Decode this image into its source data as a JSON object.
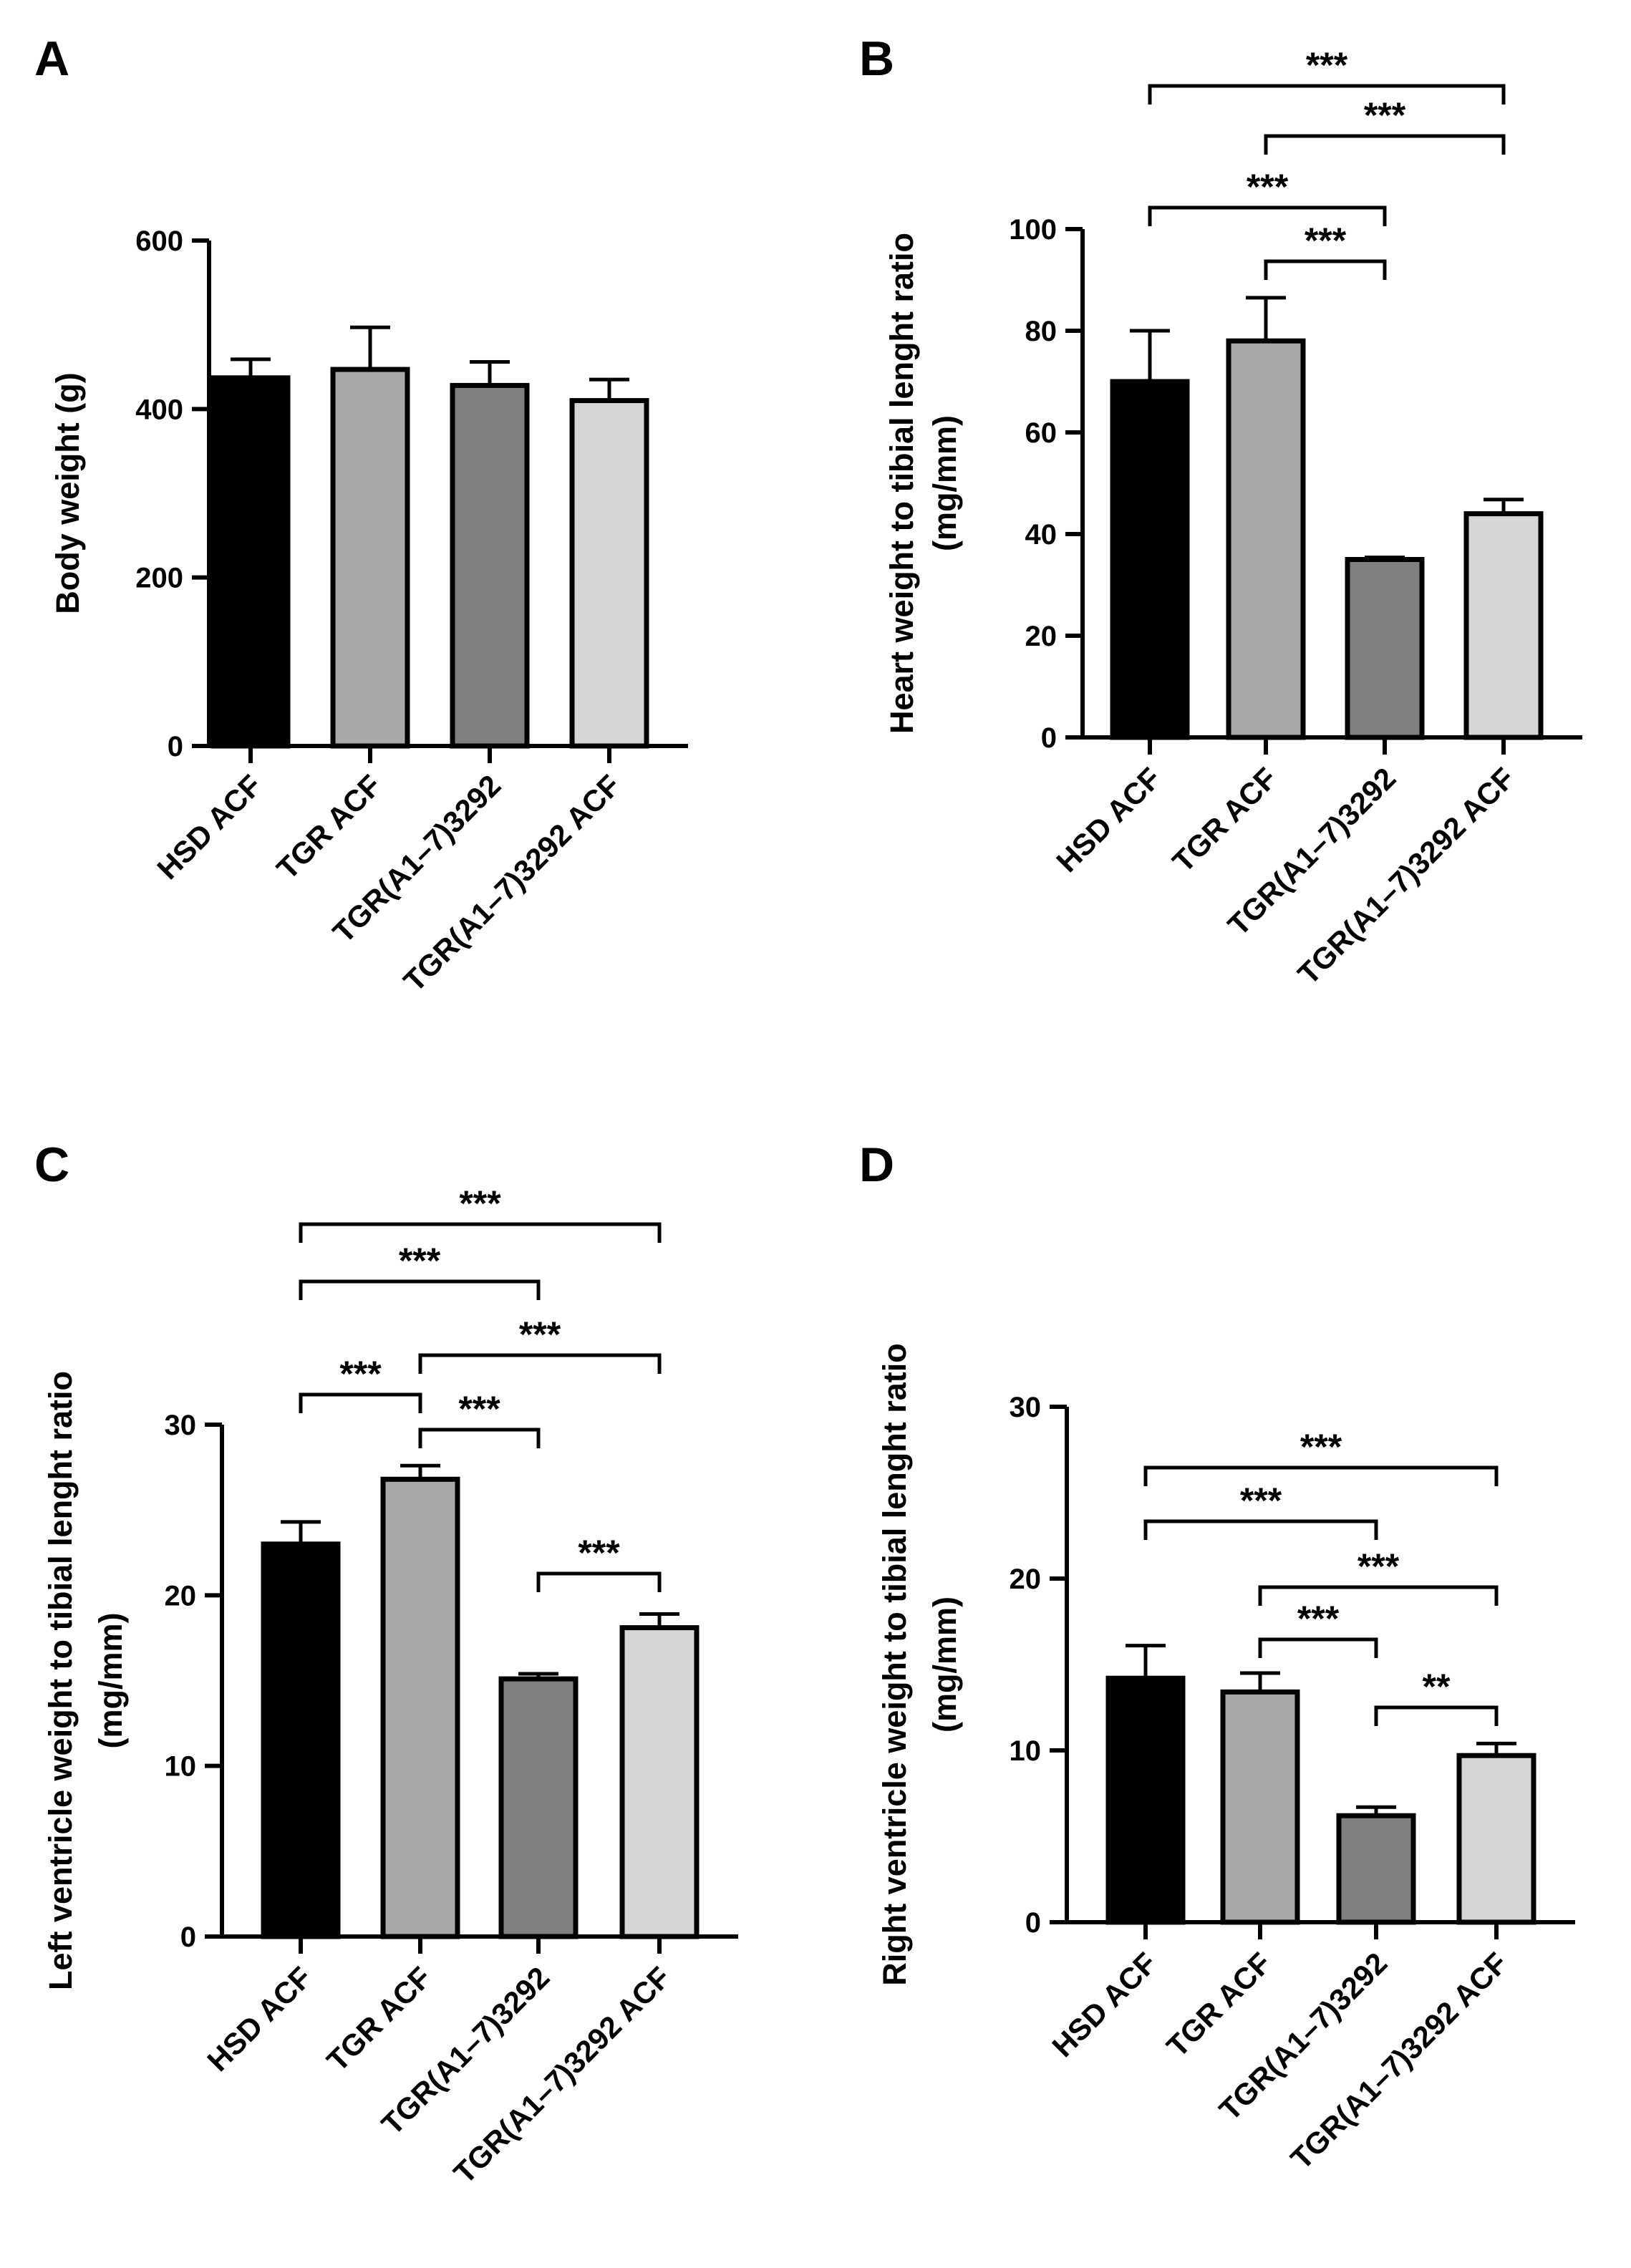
{
  "chart_data": [
    {
      "panel": "A",
      "type": "bar",
      "ylabel": [
        "Body weight (g)"
      ],
      "categories": [
        "HSD ACF",
        "TGR ACF",
        "TGR(A1–7)3292",
        "TGR(A1–7)3292  ACF"
      ],
      "values": [
        437,
        447,
        428,
        410
      ],
      "errors": [
        22,
        50,
        28,
        25
      ],
      "ylim": [
        0,
        600
      ],
      "yticks": [
        "0",
        "200",
        "400",
        "600"
      ],
      "colors": [
        "#000000",
        "#a8a8ab",
        "#808080",
        "#d6d6d6"
      ],
      "significance": []
    },
    {
      "panel": "B",
      "type": "bar",
      "ylabel": [
        "Heart weight to tibial lenght ratio",
        "(mg/mm)"
      ],
      "categories": [
        "HSD ACF",
        "TGR ACF",
        "TGR(A1–7)3292",
        "TGR(A1–7)3292  ACF"
      ],
      "values": [
        70,
        78,
        35,
        44
      ],
      "errors": [
        10,
        8.5,
        0.4,
        2.8
      ],
      "ylim": [
        0,
        100
      ],
      "yticks": [
        "0",
        "20",
        "40",
        "60",
        "80",
        "100"
      ],
      "colors": [
        "#000000",
        "#a8a8ab",
        "#808080",
        "#d6d6d6"
      ],
      "significance": [
        {
          "from": 1,
          "to": 2,
          "label": "***"
        },
        {
          "from": 0,
          "to": 2,
          "label": "***"
        },
        {
          "from": 1,
          "to": 3,
          "label": "***"
        },
        {
          "from": 0,
          "to": 3,
          "label": "***"
        }
      ]
    },
    {
      "panel": "C",
      "type": "bar",
      "ylabel": [
        "Left ventricle weight to tibial lenght ratio",
        "(mg/mm)"
      ],
      "categories": [
        "HSD ACF",
        "TGR ACF",
        "TGR(A1–7)3292",
        "TGR(A1–7)3292 ACF"
      ],
      "values": [
        23,
        26.8,
        15.1,
        18.1
      ],
      "errors": [
        1.3,
        0.8,
        0.3,
        0.8
      ],
      "ylim": [
        0,
        30
      ],
      "yticks": [
        "0",
        "10",
        "20",
        "30"
      ],
      "colors": [
        "#000000",
        "#a8a8ab",
        "#808080",
        "#d6d6d6"
      ],
      "significance": [
        {
          "from": 2,
          "to": 3,
          "label": "***"
        },
        {
          "from": 1,
          "to": 2,
          "label": "***"
        },
        {
          "from": 0,
          "to": 1,
          "label": "***"
        },
        {
          "from": 1,
          "to": 3,
          "label": "***"
        },
        {
          "from": 0,
          "to": 2,
          "label": "***"
        },
        {
          "from": 0,
          "to": 3,
          "label": "***"
        }
      ]
    },
    {
      "panel": "D",
      "type": "bar",
      "ylabel": [
        "Right ventricle weight to tibial lenght ratio",
        "(mg/mm)"
      ],
      "categories": [
        "HSD ACF",
        "TGR ACF",
        "TGR(A1–7)3292",
        "TGR(A1–7)3292 ACF"
      ],
      "values": [
        14.2,
        13.4,
        6.2,
        9.7
      ],
      "errors": [
        1.9,
        1.1,
        0.5,
        0.7
      ],
      "ylim": [
        0,
        30
      ],
      "yticks": [
        "0",
        "10",
        "20",
        "30"
      ],
      "colors": [
        "#000000",
        "#a8a8ab",
        "#808080",
        "#d6d6d6"
      ],
      "significance": [
        {
          "from": 2,
          "to": 3,
          "label": "**"
        },
        {
          "from": 1,
          "to": 2,
          "label": "***"
        },
        {
          "from": 1,
          "to": 3,
          "label": "***"
        },
        {
          "from": 0,
          "to": 2,
          "label": "***"
        },
        {
          "from": 0,
          "to": 3,
          "label": "***"
        }
      ]
    }
  ]
}
